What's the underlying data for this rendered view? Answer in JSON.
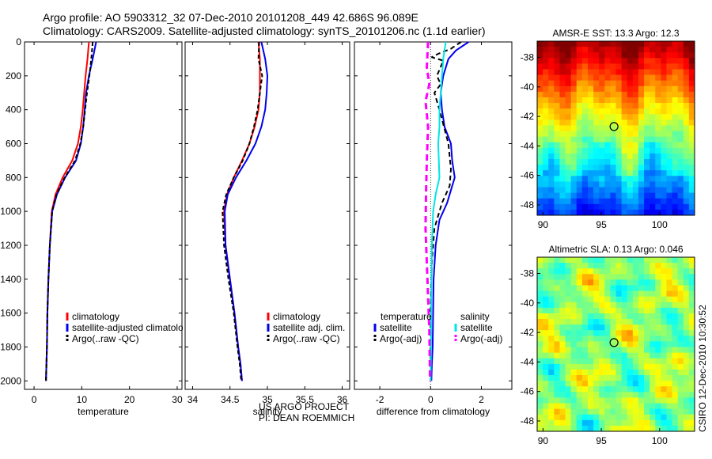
{
  "header": {
    "line1": "Argo profile: AO 5903312_32 07-Dec-2010 20101208_449 42.686S 96.089E",
    "line2": "Climatology: CARS2009. Satellite-adjusted climatology: synTS_20101206.nc (1.1d earlier)"
  },
  "footer": {
    "project": "US ARGO PROJECT",
    "pi": "PI: DEAN ROEMMICH",
    "credit": "CSIRO 12-Dec-2010 10:30:52"
  },
  "colors": {
    "climatology": "#ff0000",
    "satellite": "#0000ee",
    "argo": "#000000",
    "salinity_satellite": "#00e5e5",
    "salinity_argo": "#ff00ff"
  },
  "chart_data": [
    {
      "type": "line",
      "name": "temperature-panel",
      "xlabel": "temperature",
      "ylabel": "",
      "xlim": [
        -2,
        31
      ],
      "ylim": [
        2050,
        0
      ],
      "xticks": [
        0,
        10,
        20,
        30
      ],
      "yticks": [
        0,
        200,
        400,
        600,
        800,
        1000,
        1200,
        1400,
        1600,
        1800,
        2000
      ],
      "legend": {
        "placement": "lower-right",
        "entries": [
          "climatology",
          "satellite-adjusted climatology",
          "Argo(..raw -QC)"
        ]
      },
      "series": [
        {
          "name": "climatology",
          "color": "#ff0000",
          "width": 2,
          "x": [
            11.5,
            11.2,
            10.8,
            10.5,
            10.2,
            9.8,
            9.2,
            8.0,
            6.0,
            4.5,
            3.7,
            3.3,
            3.0,
            2.8,
            2.7,
            2.6,
            2.5
          ],
          "y": [
            0,
            100,
            200,
            300,
            400,
            500,
            600,
            700,
            800,
            900,
            1000,
            1200,
            1400,
            1600,
            1800,
            1900,
            2000
          ]
        },
        {
          "name": "satellite-adjusted climatology",
          "color": "#0000ee",
          "width": 2,
          "x": [
            13.0,
            12.3,
            11.5,
            10.9,
            10.6,
            10.3,
            9.8,
            8.8,
            6.5,
            4.8,
            3.8,
            3.3,
            3.0,
            2.8,
            2.7,
            2.6,
            2.5
          ],
          "y": [
            0,
            100,
            200,
            300,
            400,
            500,
            600,
            700,
            800,
            900,
            1000,
            1200,
            1400,
            1600,
            1800,
            1900,
            2000
          ]
        },
        {
          "name": "Argo(..raw -QC)",
          "color": "#000000",
          "width": 2,
          "dash": "5,3",
          "x": [
            12.3,
            12.0,
            11.6,
            11.1,
            10.7,
            10.3,
            9.7,
            8.6,
            6.4,
            4.7,
            3.8,
            3.3,
            3.0,
            2.8,
            2.7,
            2.6,
            2.5
          ],
          "y": [
            0,
            100,
            200,
            300,
            400,
            500,
            600,
            700,
            800,
            900,
            1000,
            1200,
            1400,
            1600,
            1800,
            1900,
            2000
          ]
        }
      ]
    },
    {
      "type": "line",
      "name": "salinity-panel",
      "xlabel": "salinity",
      "xlim": [
        33.9,
        36.1
      ],
      "ylim": [
        2050,
        0
      ],
      "xticks": [
        34,
        34.5,
        35,
        35.5,
        36
      ],
      "xticklabels": [
        "34",
        "34.5",
        "35",
        "35.5",
        "36"
      ],
      "legend": {
        "placement": "lower-right",
        "entries": [
          "climatology",
          "satellite adj. clim.",
          "Argo(..raw -QC)"
        ]
      },
      "series": [
        {
          "name": "climatology",
          "color": "#ff0000",
          "width": 2,
          "x": [
            34.88,
            34.9,
            34.9,
            34.9,
            34.88,
            34.83,
            34.76,
            34.66,
            34.55,
            34.46,
            34.42,
            34.44,
            34.5,
            34.56,
            34.61,
            34.64,
            34.66
          ],
          "y": [
            0,
            100,
            200,
            300,
            400,
            500,
            600,
            700,
            800,
            900,
            1000,
            1200,
            1400,
            1600,
            1800,
            1900,
            2000
          ]
        },
        {
          "name": "satellite adj. clim.",
          "color": "#0000ee",
          "width": 2,
          "x": [
            34.92,
            34.97,
            35.0,
            34.99,
            34.97,
            34.92,
            34.84,
            34.72,
            34.58,
            34.47,
            34.43,
            34.44,
            34.5,
            34.56,
            34.61,
            34.64,
            34.66
          ],
          "y": [
            0,
            100,
            200,
            300,
            400,
            500,
            600,
            700,
            800,
            900,
            1000,
            1200,
            1400,
            1600,
            1800,
            1900,
            2000
          ]
        },
        {
          "name": "Argo(..raw -QC)",
          "color": "#000000",
          "width": 2,
          "dash": "5,3",
          "x": [
            34.89,
            34.88,
            34.93,
            34.9,
            34.87,
            34.82,
            34.76,
            34.67,
            34.55,
            34.45,
            34.4,
            34.42,
            34.48,
            34.55,
            34.6,
            34.63,
            34.65
          ],
          "y": [
            0,
            100,
            200,
            300,
            400,
            500,
            600,
            700,
            800,
            900,
            1000,
            1200,
            1400,
            1600,
            1800,
            1900,
            2000
          ]
        }
      ]
    },
    {
      "type": "line",
      "name": "difference-panel",
      "xlabel": "difference from climatology",
      "xlim": [
        -3,
        3.2
      ],
      "ylim": [
        2050,
        0
      ],
      "xticks": [
        -2,
        0,
        2
      ],
      "zero_line": true,
      "legend": {
        "placement": "lower-center",
        "groups": [
          "temperature",
          "salinity"
        ],
        "entries": [
          "satellite",
          "Argo(-adj)",
          "satellite",
          "Argo(-adj)"
        ]
      },
      "series": [
        {
          "name": "temperature satellite",
          "color": "#0000ee",
          "width": 2,
          "x": [
            1.5,
            1.0,
            0.7,
            0.5,
            0.4,
            0.45,
            0.55,
            0.8,
            0.85,
            0.95,
            0.65,
            0.35,
            0.2,
            0.12,
            0.1,
            0.08,
            0.05,
            0.03
          ],
          "y": [
            0,
            50,
            100,
            200,
            300,
            400,
            500,
            600,
            700,
            800,
            950,
            1050,
            1200,
            1400,
            1600,
            1800,
            1900,
            2000
          ]
        },
        {
          "name": "temperature Argo(-adj)",
          "color": "#000000",
          "width": 2,
          "dash": "6,4",
          "x": [
            1.2,
            0.8,
            0.3,
            0.05,
            0.5,
            0.25,
            0.4,
            0.15,
            0.35,
            0.7,
            0.8,
            0.75,
            0.45,
            0.15,
            0.05,
            0.0,
            0.0
          ],
          "y": [
            0,
            40,
            70,
            90,
            110,
            200,
            250,
            300,
            400,
            600,
            750,
            850,
            950,
            1100,
            1300,
            1600,
            2000
          ]
        },
        {
          "name": "salinity satellite",
          "color": "#00e5e5",
          "width": 2,
          "x": [
            0.6,
            0.5,
            0.45,
            0.4,
            0.35,
            0.35,
            0.3,
            0.35,
            0.2,
            0.1,
            0.05,
            0.03,
            0.02,
            0.0
          ],
          "y": [
            0,
            100,
            200,
            300,
            400,
            500,
            600,
            800,
            900,
            1000,
            1200,
            1500,
            1800,
            2000
          ]
        },
        {
          "name": "salinity Argo(-adj)",
          "color": "#ff00ff",
          "width": 3,
          "dash": "8,5",
          "x": [
            -0.1,
            -0.15,
            -0.05,
            -0.2,
            -0.1,
            -0.15,
            -0.18,
            -0.2,
            -0.15,
            -0.1,
            -0.05,
            -0.02
          ],
          "y": [
            0,
            150,
            250,
            350,
            500,
            700,
            900,
            1100,
            1300,
            1500,
            1700,
            2000
          ]
        }
      ]
    },
    {
      "type": "heatmap",
      "name": "sst-map",
      "title": "AMSR-E SST: 13.3 Argo: 12.3",
      "xlim": [
        89.5,
        103
      ],
      "ylim": [
        -48.7,
        -36.9
      ],
      "xticks": [
        90,
        95,
        100
      ],
      "yticks": [
        -38,
        -40,
        -42,
        -44,
        -46,
        -48
      ],
      "marker": {
        "lon": 96.089,
        "lat": -42.686
      }
    },
    {
      "type": "heatmap",
      "name": "sla-map",
      "title": "Altimetric SLA: 0.13 Argo: 0.046",
      "xlim": [
        89.5,
        103
      ],
      "ylim": [
        -48.7,
        -36.9
      ],
      "xticks": [
        90,
        95,
        100
      ],
      "yticks": [
        -38,
        -40,
        -42,
        -44,
        -46,
        -48
      ],
      "marker": {
        "lon": 96.089,
        "lat": -42.686
      }
    }
  ]
}
